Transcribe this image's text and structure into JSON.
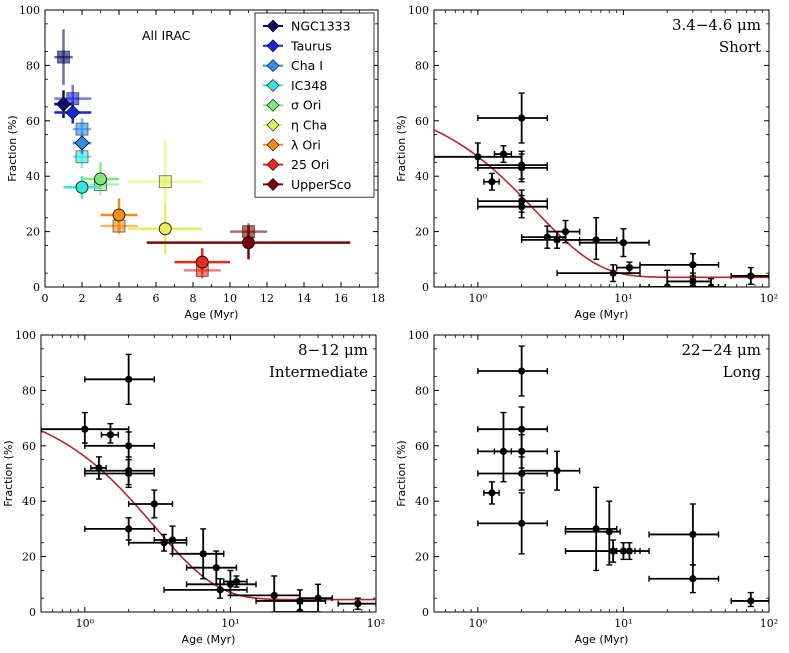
{
  "chart_data": [
    {
      "type": "scatter",
      "panel": "top-left",
      "title": "All IRAC",
      "xlabel": "Age (Myr)",
      "ylabel": "Fraction (%)",
      "xscale": "linear",
      "xlim": [
        0,
        18
      ],
      "ylim": [
        0,
        100
      ],
      "xticks": [
        0,
        2,
        4,
        6,
        8,
        10,
        12,
        14,
        16,
        18
      ],
      "yticks": [
        0,
        20,
        40,
        60,
        80,
        100
      ],
      "legend_position": "top-right",
      "series": [
        {
          "name": "NGC1333",
          "color": "#0b0b6e",
          "points": [
            {
              "x": 1.0,
              "y": 83,
              "xlo": 0.5,
              "xhi": 1.5,
              "ylo": 73,
              "yhi": 93,
              "marker": "square"
            },
            {
              "x": 1.0,
              "y": 66,
              "xlo": 0.5,
              "xhi": 1.5,
              "ylo": 61,
              "yhi": 71,
              "marker": "diamond"
            }
          ]
        },
        {
          "name": "Taurus",
          "color": "#1428d8",
          "points": [
            {
              "x": 1.5,
              "y": 68,
              "xlo": 0.5,
              "xhi": 2.5,
              "ylo": 63,
              "yhi": 73,
              "marker": "square"
            },
            {
              "x": 1.5,
              "y": 63,
              "xlo": 0.5,
              "xhi": 2.5,
              "ylo": 59,
              "yhi": 67,
              "marker": "diamond"
            }
          ]
        },
        {
          "name": "Cha I",
          "color": "#2f8ee8",
          "points": [
            {
              "x": 2.0,
              "y": 57,
              "xlo": 1.5,
              "xhi": 2.5,
              "ylo": 53,
              "yhi": 61,
              "marker": "square"
            },
            {
              "x": 2.0,
              "y": 52,
              "xlo": 1.5,
              "xhi": 2.5,
              "ylo": 48,
              "yhi": 56,
              "marker": "diamond"
            }
          ]
        },
        {
          "name": "IC348",
          "color": "#36e6d8",
          "points": [
            {
              "x": 2.0,
              "y": 47,
              "xlo": 1.5,
              "xhi": 2.5,
              "ylo": 43,
              "yhi": 51,
              "marker": "square"
            },
            {
              "x": 2.0,
              "y": 36,
              "xlo": 1.0,
              "xhi": 3.0,
              "ylo": 32,
              "yhi": 40,
              "marker": "circle"
            }
          ]
        },
        {
          "name": "σ Ori",
          "color": "#7ee87a",
          "points": [
            {
              "x": 3.0,
              "y": 37,
              "xlo": 2.0,
              "xhi": 4.0,
              "ylo": 33,
              "yhi": 41,
              "marker": "square"
            },
            {
              "x": 3.0,
              "y": 39,
              "xlo": 2.0,
              "xhi": 4.0,
              "ylo": 35,
              "yhi": 45,
              "marker": "circle"
            }
          ]
        },
        {
          "name": "η Cha",
          "color": "#e6f05a",
          "points": [
            {
              "x": 6.5,
              "y": 38,
              "xlo": 4.5,
              "xhi": 8.5,
              "ylo": 23,
              "yhi": 53,
              "marker": "square"
            },
            {
              "x": 6.5,
              "y": 21,
              "xlo": 4.5,
              "xhi": 8.5,
              "ylo": 12,
              "yhi": 30,
              "marker": "circle"
            }
          ]
        },
        {
          "name": "λ Ori",
          "color": "#f28c14",
          "points": [
            {
              "x": 4.0,
              "y": 22,
              "xlo": 3.0,
              "xhi": 5.0,
              "ylo": 19,
              "yhi": 25,
              "marker": "square"
            },
            {
              "x": 4.0,
              "y": 26,
              "xlo": 3.0,
              "xhi": 5.0,
              "ylo": 20,
              "yhi": 32,
              "marker": "circle"
            }
          ]
        },
        {
          "name": "25 Ori",
          "color": "#ea2a1c",
          "points": [
            {
              "x": 8.5,
              "y": 6,
              "xlo": 7.5,
              "xhi": 9.5,
              "ylo": 3,
              "yhi": 9,
              "marker": "square"
            },
            {
              "x": 8.5,
              "y": 9,
              "xlo": 7.0,
              "xhi": 10.0,
              "ylo": 5,
              "yhi": 14,
              "marker": "circle"
            }
          ]
        },
        {
          "name": "UpperSco",
          "color": "#7a0a0a",
          "points": [
            {
              "x": 11.0,
              "y": 20,
              "xlo": 10.0,
              "xhi": 12.0,
              "ylo": 17,
              "yhi": 23,
              "marker": "square"
            },
            {
              "x": 11.0,
              "y": 16,
              "xlo": 5.5,
              "xhi": 16.5,
              "ylo": 10,
              "yhi": 22,
              "marker": "circle"
            }
          ]
        }
      ]
    },
    {
      "type": "scatter",
      "panel": "top-right",
      "title": "3.4−4.6 μm",
      "subtitle": "Short",
      "xlabel": "Age (Myr)",
      "ylabel": "Fraction (%)",
      "xscale": "log",
      "xlim": [
        0.5,
        100
      ],
      "ylim": [
        0,
        100
      ],
      "xticks": [
        1,
        10,
        100
      ],
      "xtick_labels": [
        "10⁰",
        "10¹",
        "10²"
      ],
      "yticks": [
        0,
        20,
        40,
        60,
        80,
        100
      ],
      "points": [
        {
          "x": 1.0,
          "y": 47,
          "xlo": 0.5,
          "xhi": 2.0,
          "ylo": 43,
          "yhi": 52
        },
        {
          "x": 1.25,
          "y": 38,
          "xlo": 1.1,
          "xhi": 1.4,
          "ylo": 35,
          "yhi": 41
        },
        {
          "x": 1.5,
          "y": 48,
          "xlo": 1.3,
          "xhi": 1.7,
          "ylo": 45,
          "yhi": 51
        },
        {
          "x": 2.0,
          "y": 61,
          "xlo": 1.0,
          "xhi": 3.0,
          "ylo": 52,
          "yhi": 70
        },
        {
          "x": 2.0,
          "y": 44,
          "xlo": 1.0,
          "xhi": 3.0,
          "ylo": 39,
          "yhi": 49
        },
        {
          "x": 2.0,
          "y": 43,
          "xlo": 1.0,
          "xhi": 3.0,
          "ylo": 38,
          "yhi": 48
        },
        {
          "x": 2.0,
          "y": 31,
          "xlo": 1.0,
          "xhi": 3.0,
          "ylo": 27,
          "yhi": 35
        },
        {
          "x": 2.0,
          "y": 29,
          "xlo": 1.0,
          "xhi": 3.0,
          "ylo": 25,
          "yhi": 33
        },
        {
          "x": 3.0,
          "y": 18,
          "xlo": 2.0,
          "xhi": 4.0,
          "ylo": 14,
          "yhi": 22
        },
        {
          "x": 3.5,
          "y": 17,
          "xlo": 2.0,
          "xhi": 5.0,
          "ylo": 14,
          "yhi": 20
        },
        {
          "x": 4.0,
          "y": 20,
          "xlo": 3.0,
          "xhi": 5.0,
          "ylo": 16,
          "yhi": 24
        },
        {
          "x": 6.5,
          "y": 17,
          "xlo": 4.0,
          "xhi": 9.0,
          "ylo": 10,
          "yhi": 25
        },
        {
          "x": 8.5,
          "y": 5,
          "xlo": 3.5,
          "xhi": 13.0,
          "ylo": 2,
          "yhi": 8
        },
        {
          "x": 10.0,
          "y": 16,
          "xlo": 5.0,
          "xhi": 15.0,
          "ylo": 11,
          "yhi": 21
        },
        {
          "x": 11.0,
          "y": 7,
          "xlo": 9.0,
          "xhi": 13.0,
          "ylo": 5,
          "yhi": 9
        },
        {
          "x": 20.0,
          "y": 0,
          "xlo": 13.0,
          "xhi": 30.0,
          "ylo": -2,
          "yhi": 6
        },
        {
          "x": 30.0,
          "y": 8,
          "xlo": 13.0,
          "xhi": 45.0,
          "ylo": 4,
          "yhi": 12
        },
        {
          "x": 30.0,
          "y": 2,
          "xlo": 20.0,
          "xhi": 40.0,
          "ylo": 0,
          "yhi": 5
        },
        {
          "x": 30.0,
          "y": 0,
          "xlo": 15.0,
          "xhi": 45.0,
          "ylo": -1,
          "yhi": 3
        },
        {
          "x": 40.0,
          "y": 0,
          "xlo": 30.0,
          "xhi": 50.0,
          "ylo": -1,
          "yhi": 3
        },
        {
          "x": 75.0,
          "y": 4,
          "xlo": 55.0,
          "xhi": 100.0,
          "ylo": 1,
          "yhi": 7
        }
      ],
      "fit": {
        "A": 65,
        "tau": 2.5,
        "C": 3.5
      }
    },
    {
      "type": "scatter",
      "panel": "bottom-left",
      "title": "8−12 μm",
      "subtitle": "Intermediate",
      "xlabel": "Age (Myr)",
      "ylabel": "Fraction (%)",
      "xscale": "log",
      "xlim": [
        0.5,
        100
      ],
      "ylim": [
        0,
        100
      ],
      "xticks": [
        1,
        10,
        100
      ],
      "xtick_labels": [
        "10⁰",
        "10¹",
        "10²"
      ],
      "yticks": [
        0,
        20,
        40,
        60,
        80,
        100
      ],
      "points": [
        {
          "x": 1.0,
          "y": 66,
          "xlo": 0.5,
          "xhi": 2.0,
          "ylo": 61,
          "yhi": 72
        },
        {
          "x": 1.25,
          "y": 52,
          "xlo": 1.1,
          "xhi": 1.4,
          "ylo": 48,
          "yhi": 56
        },
        {
          "x": 1.5,
          "y": 64,
          "xlo": 1.3,
          "xhi": 1.7,
          "ylo": 61,
          "yhi": 68
        },
        {
          "x": 2.0,
          "y": 84,
          "xlo": 1.0,
          "xhi": 3.0,
          "ylo": 75,
          "yhi": 93
        },
        {
          "x": 2.0,
          "y": 60,
          "xlo": 1.0,
          "xhi": 3.0,
          "ylo": 55,
          "yhi": 65
        },
        {
          "x": 2.0,
          "y": 51,
          "xlo": 1.0,
          "xhi": 3.0,
          "ylo": 46,
          "yhi": 56
        },
        {
          "x": 2.0,
          "y": 50,
          "xlo": 1.0,
          "xhi": 3.0,
          "ylo": 45,
          "yhi": 55
        },
        {
          "x": 2.0,
          "y": 30,
          "xlo": 1.0,
          "xhi": 3.0,
          "ylo": 26,
          "yhi": 34
        },
        {
          "x": 3.0,
          "y": 39,
          "xlo": 2.0,
          "xhi": 4.0,
          "ylo": 34,
          "yhi": 44
        },
        {
          "x": 3.5,
          "y": 25,
          "xlo": 2.0,
          "xhi": 5.0,
          "ylo": 22,
          "yhi": 28
        },
        {
          "x": 4.0,
          "y": 26,
          "xlo": 3.0,
          "xhi": 5.0,
          "ylo": 21,
          "yhi": 31
        },
        {
          "x": 6.5,
          "y": 21,
          "xlo": 4.0,
          "xhi": 9.0,
          "ylo": 12,
          "yhi": 30
        },
        {
          "x": 8.0,
          "y": 16,
          "xlo": 5.0,
          "xhi": 11.0,
          "ylo": 10,
          "yhi": 22
        },
        {
          "x": 8.5,
          "y": 8,
          "xlo": 3.5,
          "xhi": 13.0,
          "ylo": 5,
          "yhi": 12
        },
        {
          "x": 10.0,
          "y": 10,
          "xlo": 5.0,
          "xhi": 15.0,
          "ylo": 6,
          "yhi": 15
        },
        {
          "x": 11.0,
          "y": 11,
          "xlo": 9.0,
          "xhi": 13.0,
          "ylo": 9,
          "yhi": 13
        },
        {
          "x": 20.0,
          "y": 6,
          "xlo": 10.0,
          "xhi": 30.0,
          "ylo": 0,
          "yhi": 13
        },
        {
          "x": 30.0,
          "y": 4,
          "xlo": 15.0,
          "xhi": 45.0,
          "ylo": 0,
          "yhi": 8
        },
        {
          "x": 30.0,
          "y": 0,
          "xlo": 20.0,
          "xhi": 40.0,
          "ylo": -2,
          "yhi": 3
        },
        {
          "x": 40.0,
          "y": 5,
          "xlo": 30.0,
          "xhi": 50.0,
          "ylo": 0,
          "yhi": 10
        },
        {
          "x": 75.0,
          "y": 3,
          "xlo": 55.0,
          "xhi": 100.0,
          "ylo": 1,
          "yhi": 5
        }
      ],
      "fit": {
        "A": 72,
        "tau": 3.0,
        "C": 4.5
      }
    },
    {
      "type": "scatter",
      "panel": "bottom-right",
      "title": "22−24 μm",
      "subtitle": "Long",
      "xlabel": "Age (Myr)",
      "ylabel": "Fraction (%)",
      "xscale": "log",
      "xlim": [
        0.5,
        100
      ],
      "ylim": [
        0,
        100
      ],
      "xticks": [
        1,
        10,
        100
      ],
      "xtick_labels": [
        "10⁰",
        "10¹",
        "10²"
      ],
      "yticks": [
        0,
        20,
        40,
        60,
        80,
        100
      ],
      "points": [
        {
          "x": 1.25,
          "y": 43,
          "xlo": 1.1,
          "xhi": 1.4,
          "ylo": 39,
          "yhi": 47
        },
        {
          "x": 1.5,
          "y": 58,
          "xlo": 1.3,
          "xhi": 1.7,
          "ylo": 47,
          "yhi": 72
        },
        {
          "x": 2.0,
          "y": 87,
          "xlo": 1.0,
          "xhi": 3.0,
          "ylo": 78,
          "yhi": 96
        },
        {
          "x": 2.0,
          "y": 66,
          "xlo": 1.0,
          "xhi": 3.0,
          "ylo": 58,
          "yhi": 74
        },
        {
          "x": 2.0,
          "y": 58,
          "xlo": 1.0,
          "xhi": 3.0,
          "ylo": 52,
          "yhi": 64
        },
        {
          "x": 2.0,
          "y": 50,
          "xlo": 1.0,
          "xhi": 3.0,
          "ylo": 44,
          "yhi": 56
        },
        {
          "x": 2.0,
          "y": 32,
          "xlo": 1.0,
          "xhi": 3.0,
          "ylo": 21,
          "yhi": 43
        },
        {
          "x": 3.5,
          "y": 51,
          "xlo": 2.0,
          "xhi": 5.0,
          "ylo": 44,
          "yhi": 58
        },
        {
          "x": 6.5,
          "y": 30,
          "xlo": 4.0,
          "xhi": 9.0,
          "ylo": 15,
          "yhi": 45
        },
        {
          "x": 8.0,
          "y": 29,
          "xlo": 4.0,
          "xhi": 9.5,
          "ylo": 17,
          "yhi": 40
        },
        {
          "x": 8.5,
          "y": 22,
          "xlo": 4.0,
          "xhi": 15.0,
          "ylo": 18,
          "yhi": 26
        },
        {
          "x": 10.0,
          "y": 22,
          "xlo": 8.0,
          "xhi": 12.0,
          "ylo": 19,
          "yhi": 25
        },
        {
          "x": 11.0,
          "y": 22,
          "xlo": 9.0,
          "xhi": 13.0,
          "ylo": 19,
          "yhi": 25
        },
        {
          "x": 30.0,
          "y": 28,
          "xlo": 15.0,
          "xhi": 45.0,
          "ylo": 17,
          "yhi": 39
        },
        {
          "x": 30.0,
          "y": 12,
          "xlo": 15.0,
          "xhi": 45.0,
          "ylo": 7,
          "yhi": 17
        },
        {
          "x": 75.0,
          "y": 4,
          "xlo": 55.0,
          "xhi": 100.0,
          "ylo": 2,
          "yhi": 7
        }
      ]
    }
  ]
}
